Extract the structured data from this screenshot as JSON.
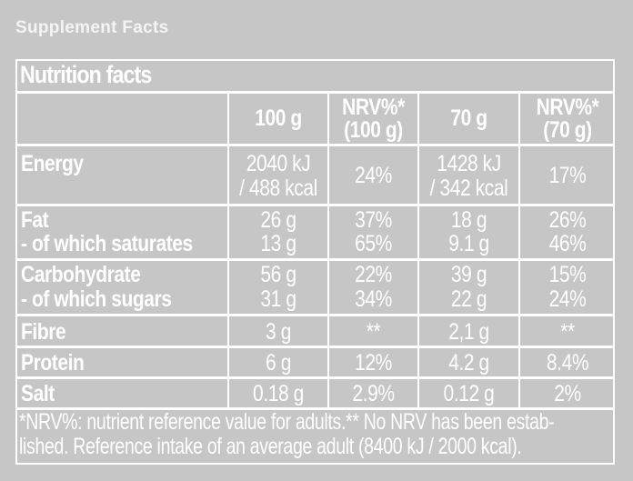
{
  "page_title": "Supplement Facts",
  "table": {
    "title": "Nutrition facts",
    "headers": {
      "col1": "100 g",
      "col2_line1": "NRV%*",
      "col2_line2": "(100 g)",
      "col3": "70 g",
      "col4_line1": "NRV%*",
      "col4_line2": "(70 g)"
    },
    "rows": {
      "energy": {
        "label": "Energy",
        "v1a": "2040 kJ",
        "v1b": "/ 488 kcal",
        "v2": "24%",
        "v3a": "1428 kJ",
        "v3b": "/ 342 kcal",
        "v4": "17%"
      },
      "fat": {
        "label": "Fat",
        "v1": "26 g",
        "v2": "37%",
        "v3": "18 g",
        "v4": "26%"
      },
      "saturates": {
        "label": "- of which saturates",
        "v1": "13 g",
        "v2": "65%",
        "v3": "9.1 g",
        "v4": "46%"
      },
      "carbohydrate": {
        "label": "Carbohydrate",
        "v1": "56 g",
        "v2": "22%",
        "v3": "39 g",
        "v4": "15%"
      },
      "sugars": {
        "label": "- of which sugars",
        "v1": "31 g",
        "v2": "34%",
        "v3": "22 g",
        "v4": "24%"
      },
      "fibre": {
        "label": "Fibre",
        "v1": "3 g",
        "v2": "**",
        "v3": "2,1 g",
        "v4": "**"
      },
      "protein": {
        "label": "Protein",
        "v1": "6 g",
        "v2": "12%",
        "v3": "4.2 g",
        "v4": "8.4%"
      },
      "salt": {
        "label": "Salt",
        "v1": "0.18 g",
        "v2": "2.9%",
        "v3": "0.12 g",
        "v4": "2%"
      }
    },
    "footnote_line1": "*NRV%: nutrient reference value for adults.** No NRV has been estab-",
    "footnote_line2": "lished. Reference intake of an average adult (8400 kJ / 2000 kcal)."
  },
  "colors": {
    "background": "#c6c6c6",
    "text": "#ffffff",
    "rule": "#ffffff"
  }
}
